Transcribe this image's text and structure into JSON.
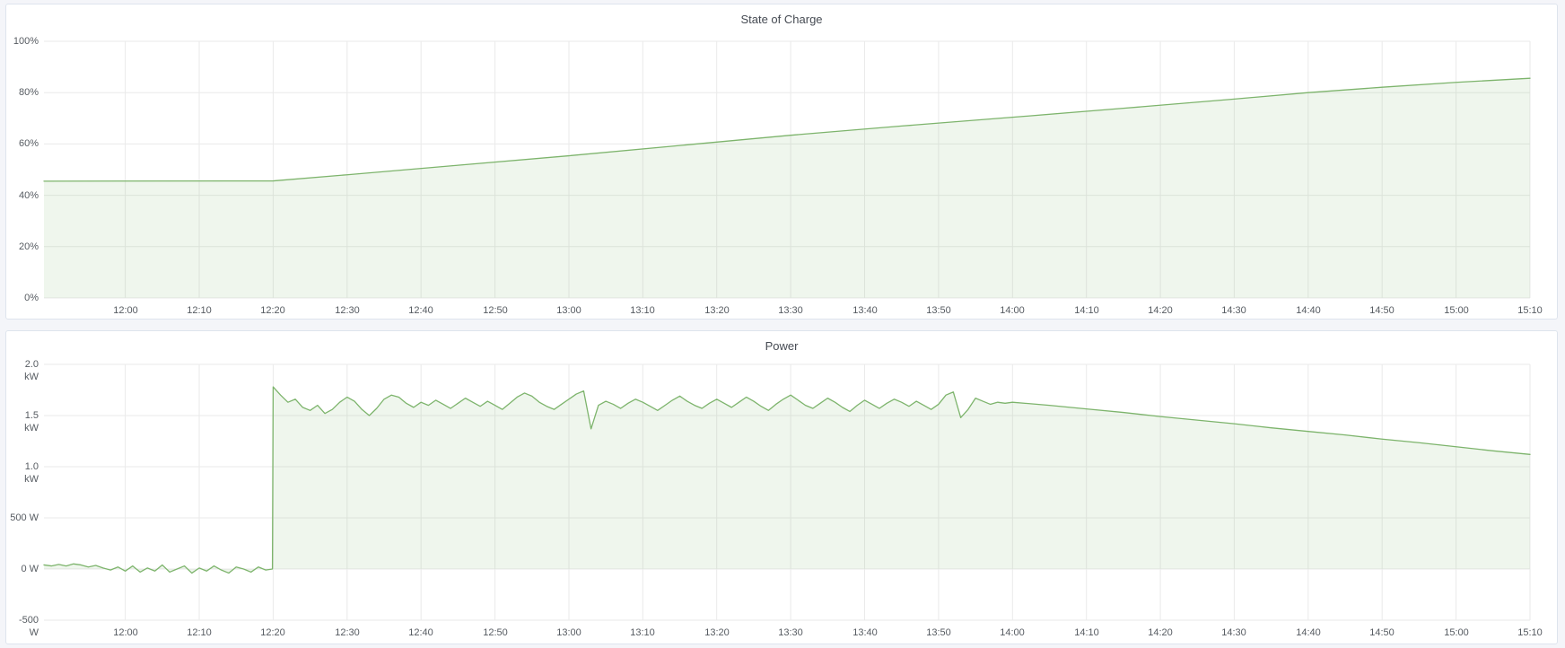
{
  "theme": {
    "page_background": "#f4f5f9",
    "panel_background": "#ffffff",
    "panel_border": "#dee4ed",
    "grid_color": "#eaeaea",
    "title_color": "#464b53",
    "tick_color": "#565b61",
    "series_green": "#7db46c"
  },
  "chart_data": [
    {
      "id": "soc",
      "type": "area",
      "title": "State of Charge",
      "ylabel": "",
      "xlabel": "",
      "legend": "none",
      "grid": true,
      "xlim": [
        709,
        910
      ],
      "ylim": [
        0,
        100
      ],
      "baseline": 0,
      "x_ticks": {
        "values": [
          720,
          730,
          740,
          750,
          760,
          770,
          780,
          790,
          800,
          810,
          820,
          830,
          840,
          850,
          860,
          870,
          880,
          890,
          900,
          910
        ],
        "labels": [
          "12:00",
          "12:10",
          "12:20",
          "12:30",
          "12:40",
          "12:50",
          "13:00",
          "13:10",
          "13:20",
          "13:30",
          "13:40",
          "13:50",
          "14:00",
          "14:10",
          "14:20",
          "14:30",
          "14:40",
          "14:50",
          "15:00",
          "15:10"
        ]
      },
      "y_ticks": {
        "values": [
          0,
          20,
          40,
          60,
          80,
          100
        ],
        "labels": [
          "0%",
          "20%",
          "40%",
          "60%",
          "80%",
          "100%"
        ]
      },
      "colors": {
        "line": "#7db46c",
        "fill": "rgba(125,180,108,0.12)"
      },
      "series": [
        {
          "name": "State of Charge",
          "unit": "%",
          "x": [
            709,
            740,
            750,
            765,
            780,
            795,
            810,
            825,
            840,
            855,
            870,
            880,
            890,
            900,
            910
          ],
          "y": [
            45.5,
            45.6,
            48.0,
            51.7,
            55.4,
            59.4,
            63.4,
            67.0,
            70.4,
            73.9,
            77.5,
            80.0,
            82.1,
            84.0,
            85.6
          ]
        }
      ]
    },
    {
      "id": "power",
      "type": "area",
      "title": "Power",
      "ylabel": "",
      "xlabel": "",
      "legend": "none",
      "grid": true,
      "xlim": [
        709,
        910
      ],
      "ylim": [
        -500,
        2000
      ],
      "baseline": 0,
      "x_ticks": {
        "values": [
          720,
          730,
          740,
          750,
          760,
          770,
          780,
          790,
          800,
          810,
          820,
          830,
          840,
          850,
          860,
          870,
          880,
          890,
          900,
          910
        ],
        "labels": [
          "12:00",
          "12:10",
          "12:20",
          "12:30",
          "12:40",
          "12:50",
          "13:00",
          "13:10",
          "13:20",
          "13:30",
          "13:40",
          "13:50",
          "14:00",
          "14:10",
          "14:20",
          "14:30",
          "14:40",
          "14:50",
          "15:00",
          "15:10"
        ]
      },
      "y_ticks": {
        "values": [
          -500,
          0,
          500,
          1000,
          1500,
          2000
        ],
        "labels": [
          "-500 W",
          "0 W",
          "500 W",
          "1.0 kW",
          "1.5 kW",
          "2.0 kW"
        ]
      },
      "colors": {
        "line": "#7db46c",
        "fill": "rgba(125,180,108,0.12)"
      },
      "series": [
        {
          "name": "Power",
          "unit": "W",
          "x": [
            709,
            710,
            711,
            712,
            713,
            714,
            715,
            716,
            717,
            718,
            719,
            720,
            721,
            722,
            723,
            724,
            725,
            726,
            727,
            728,
            729,
            730,
            731,
            732,
            733,
            734,
            735,
            736,
            737,
            738,
            739,
            739.9,
            740,
            741,
            742,
            743,
            744,
            745,
            746,
            747,
            748,
            749,
            750,
            751,
            752,
            753,
            754,
            755,
            756,
            757,
            758,
            759,
            760,
            761,
            762,
            763,
            764,
            765,
            766,
            767,
            768,
            769,
            770,
            771,
            772,
            773,
            774,
            775,
            776,
            777,
            778,
            779,
            780,
            781,
            782,
            783,
            784,
            785,
            786,
            787,
            788,
            789,
            790,
            791,
            792,
            793,
            794,
            795,
            796,
            797,
            798,
            799,
            800,
            801,
            802,
            803,
            804,
            805,
            806,
            807,
            808,
            809,
            810,
            811,
            812,
            813,
            814,
            815,
            816,
            817,
            818,
            819,
            820,
            821,
            822,
            823,
            824,
            825,
            826,
            827,
            828,
            829,
            830,
            831,
            832,
            833,
            834,
            835,
            836,
            837,
            838,
            839,
            840,
            845,
            850,
            855,
            860,
            865,
            870,
            875,
            880,
            885,
            890,
            895,
            900,
            905,
            910
          ],
          "y": [
            40,
            30,
            45,
            30,
            50,
            40,
            20,
            35,
            10,
            -10,
            20,
            -20,
            30,
            -30,
            10,
            -20,
            40,
            -30,
            0,
            30,
            -40,
            10,
            -20,
            30,
            -10,
            -40,
            20,
            0,
            -30,
            20,
            -10,
            0,
            1780,
            1700,
            1630,
            1660,
            1580,
            1550,
            1600,
            1520,
            1560,
            1630,
            1680,
            1640,
            1560,
            1500,
            1570,
            1660,
            1700,
            1680,
            1620,
            1580,
            1630,
            1600,
            1650,
            1610,
            1570,
            1620,
            1670,
            1630,
            1590,
            1640,
            1600,
            1560,
            1620,
            1680,
            1720,
            1690,
            1630,
            1590,
            1560,
            1610,
            1660,
            1710,
            1740,
            1370,
            1600,
            1640,
            1610,
            1570,
            1620,
            1660,
            1630,
            1590,
            1550,
            1600,
            1650,
            1690,
            1640,
            1600,
            1570,
            1620,
            1660,
            1620,
            1580,
            1630,
            1680,
            1640,
            1590,
            1550,
            1610,
            1660,
            1700,
            1650,
            1600,
            1570,
            1620,
            1670,
            1630,
            1580,
            1540,
            1600,
            1650,
            1610,
            1570,
            1620,
            1660,
            1630,
            1590,
            1640,
            1600,
            1560,
            1610,
            1700,
            1730,
            1480,
            1560,
            1670,
            1640,
            1610,
            1630,
            1620,
            1630,
            1600,
            1565,
            1530,
            1490,
            1455,
            1420,
            1380,
            1345,
            1310,
            1270,
            1235,
            1195,
            1155,
            1120
          ]
        }
      ]
    }
  ]
}
